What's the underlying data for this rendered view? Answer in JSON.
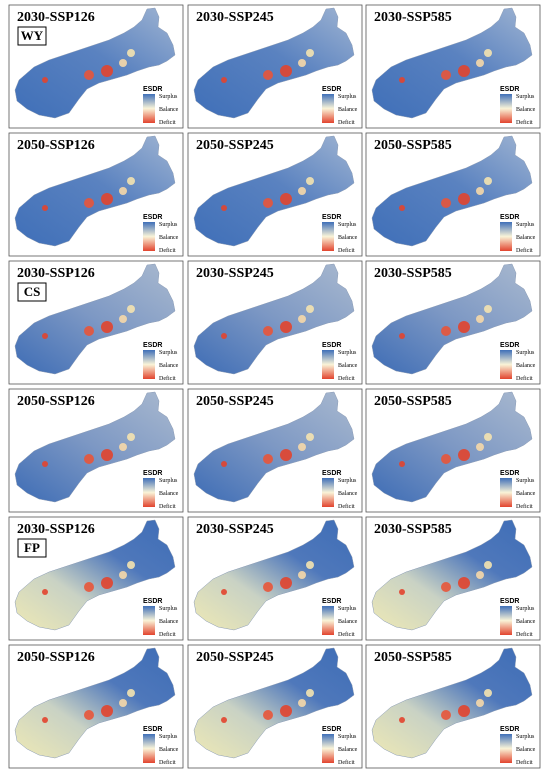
{
  "panels": [
    {
      "title": "2030-SSP126",
      "tag": "WY"
    },
    {
      "title": "2030-SSP245"
    },
    {
      "title": "2030-SSP585"
    },
    {
      "title": "2050-SSP126"
    },
    {
      "title": "2050-SSP245"
    },
    {
      "title": "2050-SSP585"
    },
    {
      "title": "2030-SSP126",
      "tag": "CS"
    },
    {
      "title": "2030-SSP245"
    },
    {
      "title": "2030-SSP585"
    },
    {
      "title": "2050-SSP126"
    },
    {
      "title": "2050-SSP245"
    },
    {
      "title": "2050-SSP585"
    },
    {
      "title": "2030-SSP126",
      "tag": "FP"
    },
    {
      "title": "2030-SSP245"
    },
    {
      "title": "2030-SSP585"
    },
    {
      "title": "2050-SSP126"
    },
    {
      "title": "2050-SSP245"
    },
    {
      "title": "2050-SSP585"
    }
  ],
  "legend": {
    "title": "ESDR",
    "labels": [
      "Surplus",
      "Balance",
      "Deficit"
    ]
  }
}
